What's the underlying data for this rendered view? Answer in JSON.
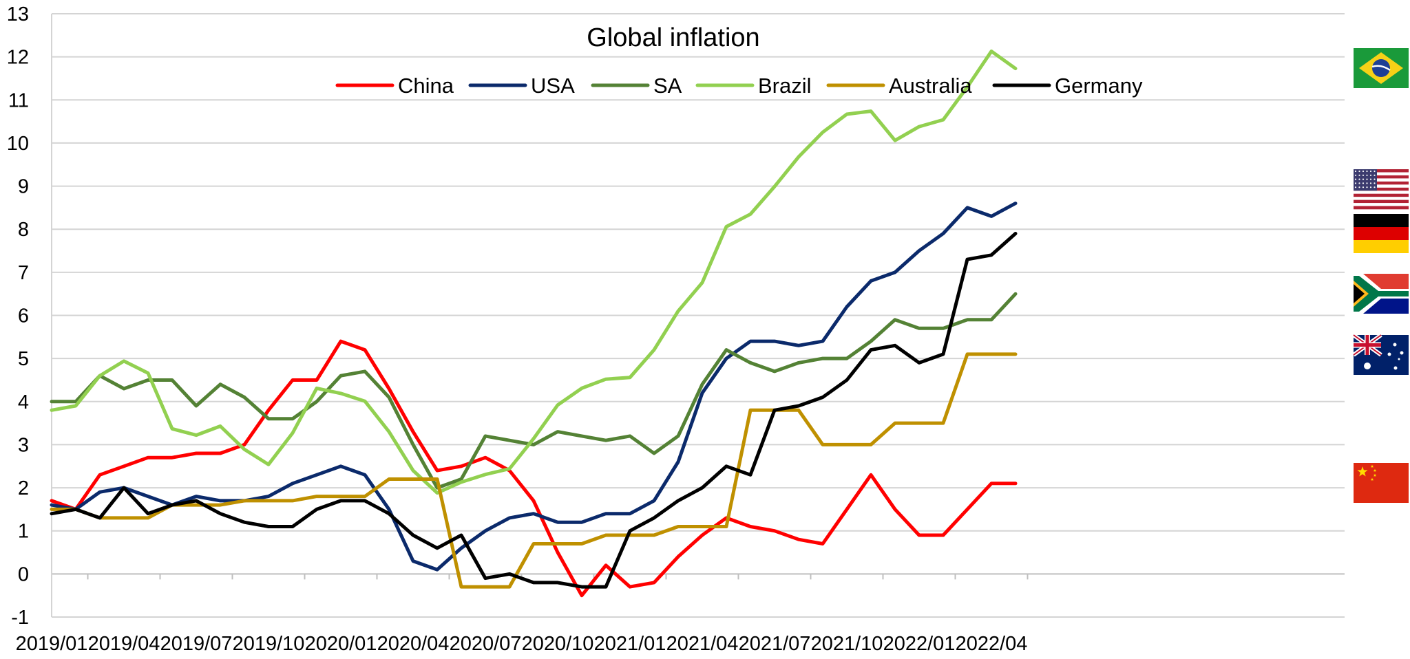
{
  "chart_data": {
    "type": "line",
    "title": "Global inflation",
    "xlabel": "",
    "ylabel": "",
    "ylim": [
      -1,
      13
    ],
    "yticks": [
      -1,
      0,
      1,
      2,
      3,
      4,
      5,
      6,
      7,
      8,
      9,
      10,
      11,
      12,
      13
    ],
    "grid": true,
    "legend_position": "top",
    "x": [
      "2019/01",
      "2019/02",
      "2019/03",
      "2019/04",
      "2019/05",
      "2019/06",
      "2019/07",
      "2019/08",
      "2019/09",
      "2019/10",
      "2019/11",
      "2019/12",
      "2020/01",
      "2020/02",
      "2020/03",
      "2020/04",
      "2020/05",
      "2020/06",
      "2020/07",
      "2020/08",
      "2020/09",
      "2020/10",
      "2020/11",
      "2020/12",
      "2021/01",
      "2021/02",
      "2021/03",
      "2021/04",
      "2021/05",
      "2021/06",
      "2021/07",
      "2021/08",
      "2021/09",
      "2021/10",
      "2021/11",
      "2021/12",
      "2022/01",
      "2022/02",
      "2022/03",
      "2022/04",
      "2022/05"
    ],
    "x_tick_labels": [
      "2019/01",
      "2019/04",
      "2019/07",
      "2019/10",
      "2020/01",
      "2020/04",
      "2020/07",
      "2020/10",
      "2021/01",
      "2021/04",
      "2021/07",
      "2021/10",
      "2022/01",
      "2022/04"
    ],
    "series": [
      {
        "name": "China",
        "color": "#ff0000",
        "flag": "china-flag",
        "values": [
          1.7,
          1.5,
          2.3,
          2.5,
          2.7,
          2.7,
          2.8,
          2.8,
          3.0,
          3.8,
          4.5,
          4.5,
          5.4,
          5.2,
          4.3,
          3.3,
          2.4,
          2.5,
          2.7,
          2.4,
          1.7,
          0.5,
          -0.5,
          0.2,
          -0.3,
          -0.2,
          0.4,
          0.9,
          1.3,
          1.1,
          1.0,
          0.8,
          0.7,
          1.5,
          2.3,
          1.5,
          0.9,
          0.9,
          1.5,
          2.1,
          2.1
        ]
      },
      {
        "name": "USA",
        "color": "#0b2a6b",
        "flag": "usa-flag",
        "values": [
          1.6,
          1.5,
          1.9,
          2.0,
          1.8,
          1.6,
          1.8,
          1.7,
          1.7,
          1.8,
          2.1,
          2.3,
          2.5,
          2.3,
          1.5,
          0.3,
          0.1,
          0.6,
          1.0,
          1.3,
          1.4,
          1.2,
          1.2,
          1.4,
          1.4,
          1.7,
          2.6,
          4.2,
          5.0,
          5.4,
          5.4,
          5.3,
          5.4,
          6.2,
          6.8,
          7.0,
          7.5,
          7.9,
          8.5,
          8.3,
          8.6
        ]
      },
      {
        "name": "SA",
        "color": "#548235",
        "flag": "south-africa-flag",
        "values": [
          4.0,
          4.0,
          4.6,
          4.3,
          4.5,
          4.5,
          3.9,
          4.4,
          4.1,
          3.6,
          3.6,
          4.0,
          4.6,
          4.7,
          4.1,
          3.0,
          2.0,
          2.2,
          3.2,
          3.1,
          3.0,
          3.3,
          3.2,
          3.1,
          3.2,
          2.8,
          3.2,
          4.4,
          5.2,
          4.9,
          4.7,
          4.9,
          5.0,
          5.0,
          5.4,
          5.9,
          5.7,
          5.7,
          5.9,
          5.9,
          6.5
        ]
      },
      {
        "name": "Brazil",
        "color": "#92d050",
        "flag": "brazil-flag",
        "values": [
          3.8,
          3.9,
          4.6,
          4.94,
          4.66,
          3.37,
          3.22,
          3.43,
          2.89,
          2.54,
          3.27,
          4.31,
          4.19,
          4.01,
          3.3,
          2.4,
          1.88,
          2.13,
          2.31,
          2.44,
          3.14,
          3.92,
          4.31,
          4.52,
          4.56,
          5.2,
          6.1,
          6.76,
          8.06,
          8.35,
          8.99,
          9.68,
          10.25,
          10.67,
          10.74,
          10.06,
          10.38,
          10.54,
          11.3,
          12.13,
          11.73
        ]
      },
      {
        "name": "Australia",
        "color": "#bf9000",
        "flag": "australia-flag",
        "values": [
          1.5,
          1.5,
          1.3,
          1.3,
          1.3,
          1.6,
          1.6,
          1.6,
          1.7,
          1.7,
          1.7,
          1.8,
          1.8,
          1.8,
          2.2,
          2.2,
          2.2,
          -0.3,
          -0.3,
          -0.3,
          0.7,
          0.7,
          0.7,
          0.9,
          0.9,
          0.9,
          1.1,
          1.1,
          1.1,
          3.8,
          3.8,
          3.8,
          3.0,
          3.0,
          3.0,
          3.5,
          3.5,
          3.5,
          5.1,
          5.1,
          5.1
        ]
      },
      {
        "name": "Germany",
        "color": "#000000",
        "flag": "germany-flag",
        "values": [
          1.4,
          1.5,
          1.3,
          2.0,
          1.4,
          1.6,
          1.7,
          1.4,
          1.2,
          1.1,
          1.1,
          1.5,
          1.7,
          1.7,
          1.4,
          0.9,
          0.6,
          0.9,
          -0.1,
          0.0,
          -0.2,
          -0.2,
          -0.3,
          -0.3,
          1.0,
          1.3,
          1.7,
          2.0,
          2.5,
          2.3,
          3.8,
          3.9,
          4.1,
          4.5,
          5.2,
          5.3,
          4.9,
          5.1,
          7.3,
          7.4,
          7.9
        ]
      }
    ]
  }
}
